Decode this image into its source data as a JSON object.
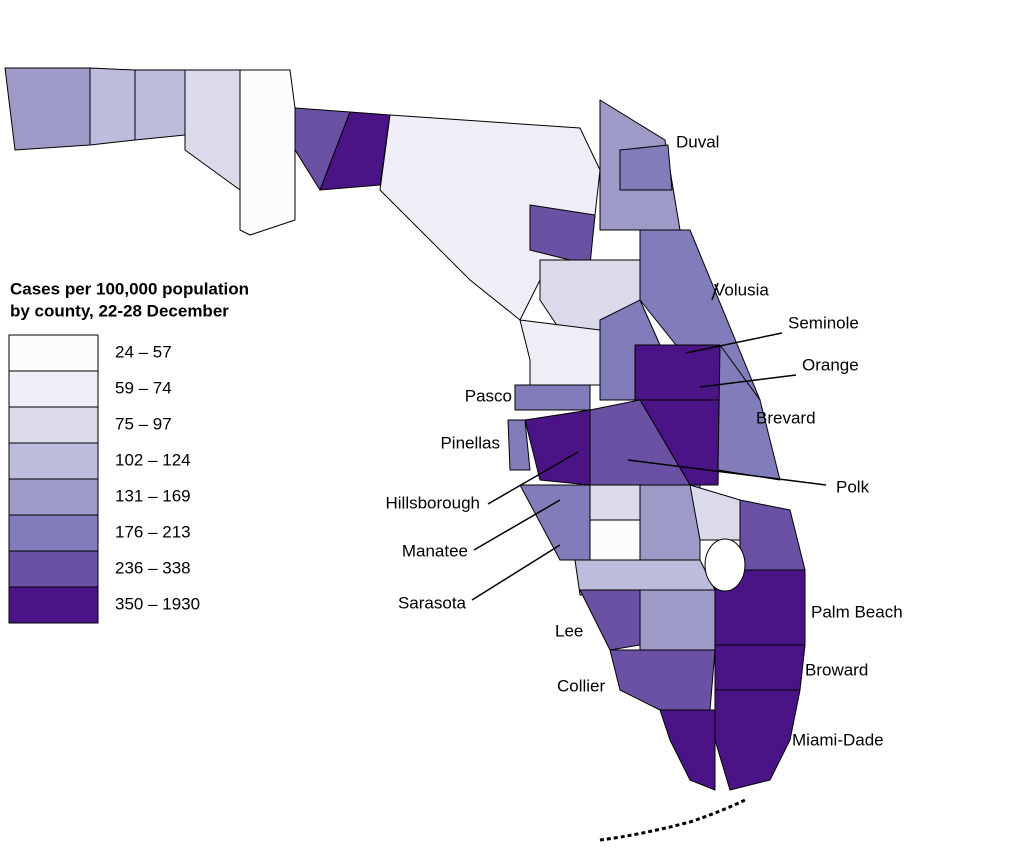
{
  "legend": {
    "title": [
      "Cases per 100,000 population",
      "by county, 22-28 December"
    ],
    "classes": [
      {
        "label": "24 – 57",
        "color": "#fcfbfd"
      },
      {
        "label": "59 – 74",
        "color": "#efedf5"
      },
      {
        "label": "75 – 97",
        "color": "#dadaeb"
      },
      {
        "label": "102 – 124",
        "color": "#bcbddc"
      },
      {
        "label": "131 – 169",
        "color": "#9e9ac8"
      },
      {
        "label": "176 – 213",
        "color": "#807dba"
      },
      {
        "label": "236 – 338",
        "color": "#6a51a3"
      },
      {
        "label": "350 – 1930",
        "color": "#4a1486"
      }
    ]
  },
  "labels": [
    "Duval",
    "Volusia",
    "Seminole",
    "Orange",
    "Brevard",
    "Polk",
    "Pasco",
    "Pinellas",
    "Hillsborough",
    "Manatee",
    "Sarasota",
    "Lee",
    "Collier",
    "Palm Beach",
    "Broward",
    "Miami-Dade"
  ]
}
